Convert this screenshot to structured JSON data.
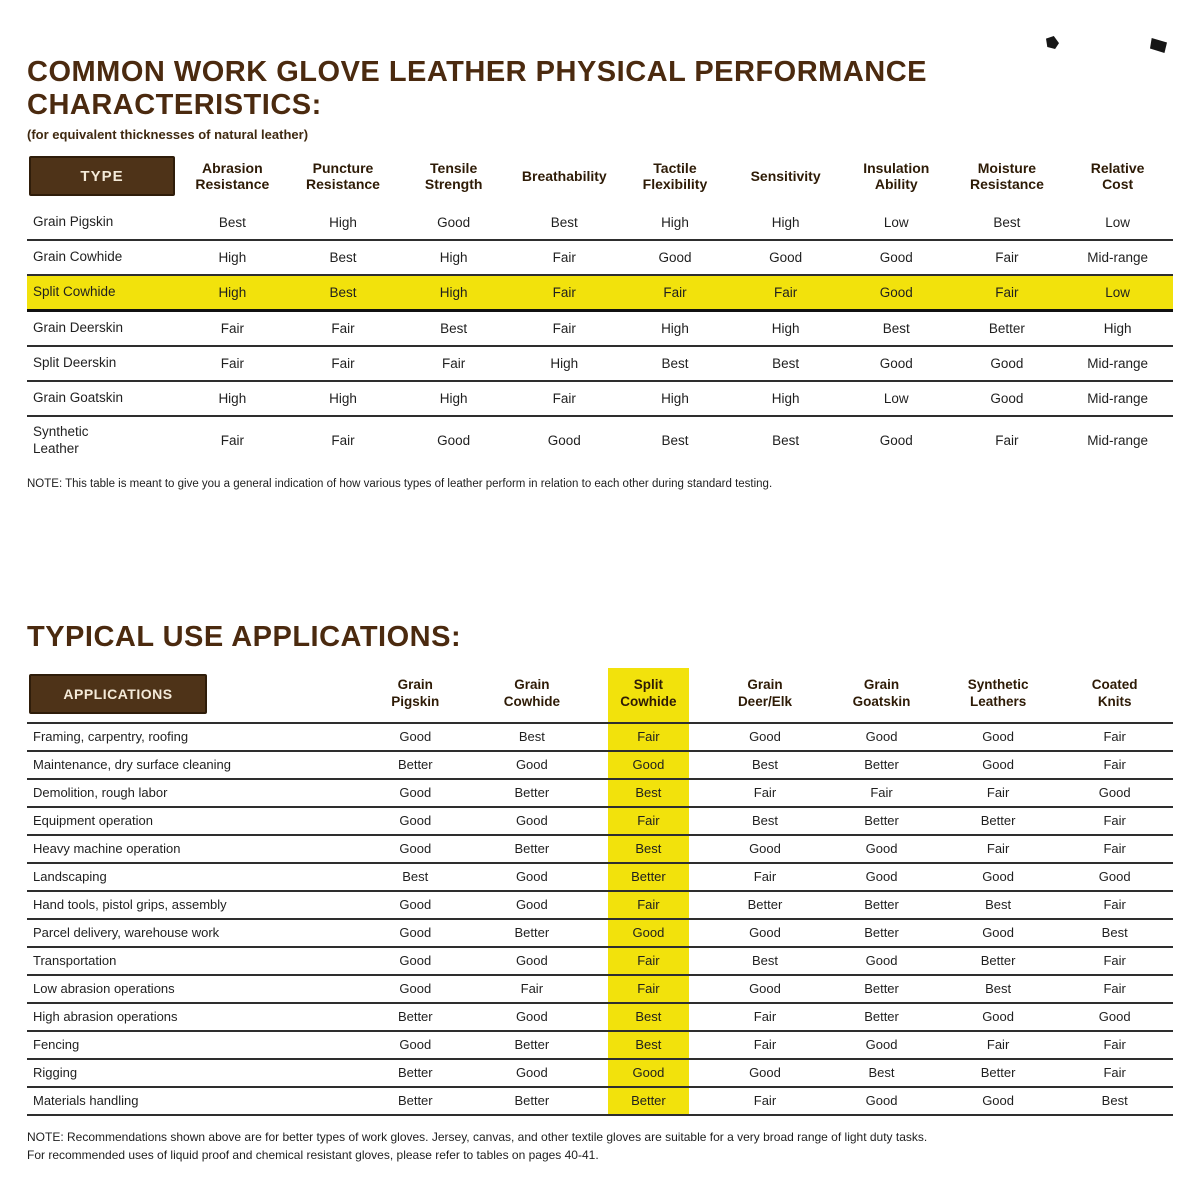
{
  "section1": {
    "title": "COMMON WORK GLOVE LEATHER PHYSICAL PERFORMANCE CHARACTERISTICS:",
    "subtitle": "(for equivalent thicknesses of natural leather)",
    "corner_label": "TYPE",
    "columns": [
      "Abrasion\nResistance",
      "Puncture\nResistance",
      "Tensile\nStrength",
      "Breathability",
      "Tactile\nFlexibility",
      "Sensitivity",
      "Insulation\nAbility",
      "Moisture\nResistance",
      "Relative\nCost"
    ],
    "rows": [
      {
        "type": "Grain Pigskin",
        "highlight": false,
        "values": [
          "Best",
          "High",
          "Good",
          "Best",
          "High",
          "High",
          "Low",
          "Best",
          "Low"
        ]
      },
      {
        "type": "Grain Cowhide",
        "highlight": false,
        "values": [
          "High",
          "Best",
          "High",
          "Fair",
          "Good",
          "Good",
          "Good",
          "Fair",
          "Mid-range"
        ]
      },
      {
        "type": "Split Cowhide",
        "highlight": true,
        "values": [
          "High",
          "Best",
          "High",
          "Fair",
          "Fair",
          "Fair",
          "Good",
          "Fair",
          "Low"
        ]
      },
      {
        "type": "Grain Deerskin",
        "highlight": false,
        "values": [
          "Fair",
          "Fair",
          "Best",
          "Fair",
          "High",
          "High",
          "Best",
          "Better",
          "High"
        ]
      },
      {
        "type": "Split Deerskin",
        "highlight": false,
        "values": [
          "Fair",
          "Fair",
          "Fair",
          "High",
          "Best",
          "Best",
          "Good",
          "Good",
          "Mid-range"
        ]
      },
      {
        "type": "Grain Goatskin",
        "highlight": false,
        "values": [
          "High",
          "High",
          "High",
          "Fair",
          "High",
          "High",
          "Low",
          "Good",
          "Mid-range"
        ]
      },
      {
        "type": "Synthetic\nLeather",
        "highlight": false,
        "values": [
          "Fair",
          "Fair",
          "Good",
          "Good",
          "Best",
          "Best",
          "Good",
          "Fair",
          "Mid-range"
        ]
      }
    ],
    "note": "NOTE: This table is meant to give you a general indication of how various types of leather perform in relation to each other during standard testing."
  },
  "section2": {
    "title": "TYPICAL USE APPLICATIONS:",
    "corner_label": "APPLICATIONS",
    "columns": [
      "Grain\nPigskin",
      "Grain\nCowhide",
      "Split\nCowhide",
      "Grain\nDeer/Elk",
      "Grain\nGoatskin",
      "Synthetic\nLeathers",
      "Coated\nKnits"
    ],
    "highlight_column_index": 2,
    "rows": [
      {
        "application": "Framing, carpentry, roofing",
        "values": [
          "Good",
          "Best",
          "Fair",
          "Good",
          "Good",
          "Good",
          "Fair"
        ]
      },
      {
        "application": "Maintenance, dry surface cleaning",
        "values": [
          "Better",
          "Good",
          "Good",
          "Best",
          "Better",
          "Good",
          "Fair"
        ]
      },
      {
        "application": "Demolition, rough labor",
        "values": [
          "Good",
          "Better",
          "Best",
          "Fair",
          "Fair",
          "Fair",
          "Good"
        ]
      },
      {
        "application": "Equipment operation",
        "values": [
          "Good",
          "Good",
          "Fair",
          "Best",
          "Better",
          "Better",
          "Fair"
        ]
      },
      {
        "application": "Heavy machine operation",
        "values": [
          "Good",
          "Better",
          "Best",
          "Good",
          "Good",
          "Fair",
          "Fair"
        ]
      },
      {
        "application": "Landscaping",
        "values": [
          "Best",
          "Good",
          "Better",
          "Fair",
          "Good",
          "Good",
          "Good"
        ]
      },
      {
        "application": "Hand tools, pistol grips, assembly",
        "values": [
          "Good",
          "Good",
          "Fair",
          "Better",
          "Better",
          "Best",
          "Fair"
        ]
      },
      {
        "application": "Parcel delivery, warehouse work",
        "values": [
          "Good",
          "Better",
          "Good",
          "Good",
          "Better",
          "Good",
          "Best"
        ]
      },
      {
        "application": "Transportation",
        "values": [
          "Good",
          "Good",
          "Fair",
          "Best",
          "Good",
          "Better",
          "Fair"
        ]
      },
      {
        "application": "Low abrasion operations",
        "values": [
          "Good",
          "Fair",
          "Fair",
          "Good",
          "Better",
          "Best",
          "Fair"
        ]
      },
      {
        "application": "High abrasion operations",
        "values": [
          "Better",
          "Good",
          "Best",
          "Fair",
          "Better",
          "Good",
          "Good"
        ]
      },
      {
        "application": "Fencing",
        "values": [
          "Good",
          "Better",
          "Best",
          "Fair",
          "Good",
          "Fair",
          "Fair"
        ]
      },
      {
        "application": "Rigging",
        "values": [
          "Better",
          "Good",
          "Good",
          "Good",
          "Best",
          "Better",
          "Fair"
        ]
      },
      {
        "application": "Materials handling",
        "values": [
          "Better",
          "Better",
          "Better",
          "Fair",
          "Good",
          "Good",
          "Best"
        ]
      }
    ],
    "note_lines": [
      "NOTE: Recommendations shown above are for better types of work gloves. Jersey, canvas, and other textile gloves are suitable for a very broad range of light duty tasks.",
      "For recommended uses of liquid proof and chemical resistant gloves, please refer to tables on pages 40-41."
    ]
  },
  "colors": {
    "title_brown": "#4b2a0f",
    "box_brown": "#4e3318",
    "highlight_yellow": "#f2e20c"
  }
}
